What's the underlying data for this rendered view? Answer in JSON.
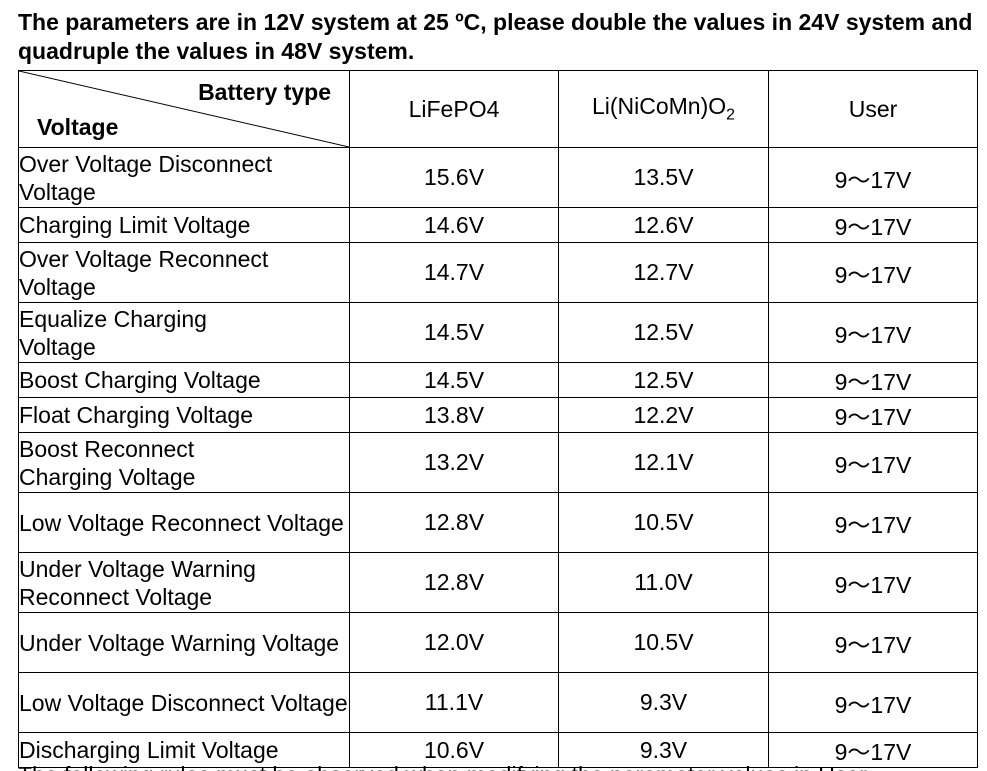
{
  "intro": "The parameters are in 12V system at 25 ºC, please double the values in 24V system and quadruple the values in 48V system.",
  "table": {
    "corner_top": "Battery type",
    "corner_bottom": "Voltage",
    "columns": {
      "c1": "LiFePO4",
      "c2_base": "Li(NiCoMn)O",
      "c2_sub": "2",
      "c3": "User"
    },
    "rows": [
      {
        "label": "Over Voltage Disconnect Voltage",
        "v1": "15.6V",
        "v2": "13.5V",
        "v3": "9～17V"
      },
      {
        "label": "Charging Limit Voltage",
        "v1": "14.6V",
        "v2": "12.6V",
        "v3": "9～17V"
      },
      {
        "label": "Over Voltage Reconnect Voltage",
        "v1": "14.7V",
        "v2": "12.7V",
        "v3": "9～17V"
      },
      {
        "label": "Equalize Charging Voltage",
        "v1": "14.5V",
        "v2": "12.5V",
        "v3": "9～17V"
      },
      {
        "label": "Boost Charging Voltage",
        "v1": "14.5V",
        "v2": "12.5V",
        "v3": "9～17V"
      },
      {
        "label": "Float Charging Voltage",
        "v1": "13.8V",
        "v2": "12.2V",
        "v3": "9～17V"
      },
      {
        "label": "Boost Reconnect Charging Voltage",
        "v1": "13.2V",
        "v2": "12.1V",
        "v3": "9～17V"
      },
      {
        "label": "Low Voltage Reconnect Voltage",
        "v1": "12.8V",
        "v2": "10.5V",
        "v3": "9～17V"
      },
      {
        "label": "Under Voltage Warning Reconnect Voltage",
        "v1": "12.8V",
        "v2": "11.0V",
        "v3": "9～17V"
      },
      {
        "label": "Under Voltage Warning Voltage",
        "v1": "12.0V",
        "v2": "10.5V",
        "v3": "9～17V"
      },
      {
        "label": "Low Voltage Disconnect Voltage",
        "v1": "11.1V",
        "v2": "9.3V",
        "v3": "9～17V"
      },
      {
        "label": "Discharging Limit Voltage",
        "v1": "10.6V",
        "v2": "9.3V",
        "v3": "9～17V"
      }
    ]
  },
  "next_line": "The following rules must be observed when modifying the parameter values in User"
}
